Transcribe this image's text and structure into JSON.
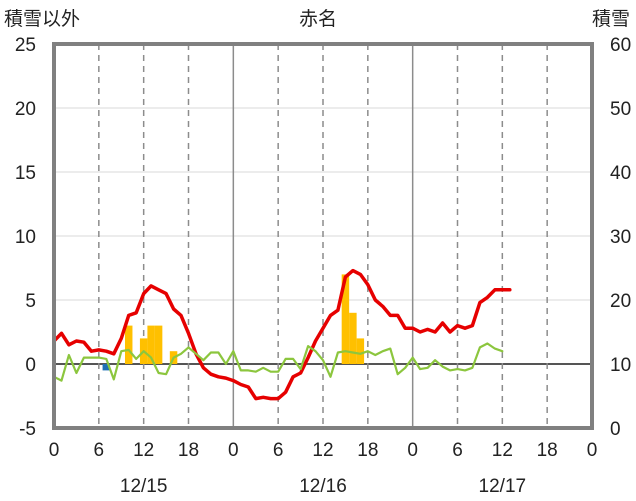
{
  "header": {
    "left_label": "積雪以外",
    "center_label": "赤名",
    "right_label": "積雪"
  },
  "colors": {
    "temperature": "#e60000",
    "wind": "#8cc63e",
    "precipitation": "#ffc000",
    "snow_depth": "#7030a0",
    "sunshine": "#1f6fb5",
    "frame": "#808080",
    "zero_line": "#555555"
  },
  "chart_data": {
    "type": "line",
    "x": [
      0,
      1,
      2,
      3,
      4,
      5,
      6,
      7,
      8,
      9,
      10,
      11,
      12,
      13,
      14,
      15,
      16,
      17,
      18,
      19,
      20,
      21,
      22,
      23,
      24,
      25,
      26,
      27,
      28,
      29,
      30,
      31,
      32,
      33,
      34,
      35,
      36,
      37,
      38,
      39,
      40,
      41,
      42,
      43,
      44,
      45,
      46,
      47,
      48,
      49,
      50,
      51,
      52,
      53,
      54,
      55,
      56,
      57,
      58,
      59,
      60,
      61,
      62,
      63,
      64,
      65,
      66,
      67,
      68,
      69,
      70,
      71
    ],
    "xlim": [
      0,
      72
    ],
    "x_ticks": [
      0,
      6,
      12,
      18,
      24,
      30,
      36,
      42,
      48,
      54,
      60,
      66,
      72
    ],
    "x_tick_labels": [
      "0",
      "6",
      "12",
      "18",
      "0",
      "6",
      "12",
      "18",
      "0",
      "6",
      "12",
      "18",
      "0"
    ],
    "date_labels": [
      {
        "text": "12/15",
        "at": 12
      },
      {
        "text": "12/16",
        "at": 36
      },
      {
        "text": "12/17",
        "at": 60
      }
    ],
    "ylim_left": [
      -5,
      25
    ],
    "y_ticks_left": [
      -5,
      0,
      5,
      10,
      15,
      20,
      25
    ],
    "ylim_right": [
      0,
      60
    ],
    "y_ticks_right": [
      0,
      10,
      20,
      30,
      40,
      50,
      60
    ],
    "grid": true,
    "series": [
      {
        "key": "temperature",
        "style": "line",
        "values": [
          1.8,
          2.4,
          1.5,
          1.8,
          1.7,
          1.0,
          1.1,
          1.0,
          0.8,
          2.0,
          3.8,
          4.0,
          5.5,
          6.1,
          5.8,
          5.5,
          4.3,
          3.8,
          2.4,
          0.8,
          -0.3,
          -0.8,
          -1.0,
          -1.1,
          -1.3,
          -1.6,
          -1.8,
          -2.7,
          -2.6,
          -2.7,
          -2.7,
          -2.2,
          -1.0,
          -0.7,
          0.5,
          1.8,
          2.8,
          3.8,
          4.2,
          6.8,
          7.3,
          7.0,
          6.2,
          5.0,
          4.5,
          3.8,
          3.8,
          2.8,
          2.8,
          2.5,
          2.7,
          2.5,
          3.2,
          2.5,
          3.0,
          2.8,
          3.0,
          4.8,
          5.2,
          5.8,
          5.8,
          5.8,
          null,
          null,
          null,
          null,
          null,
          null,
          null,
          null,
          null,
          null
        ]
      },
      {
        "key": "wind",
        "style": "line",
        "values": [
          -1.0,
          -1.3,
          0.7,
          -0.7,
          0.5,
          0.5,
          0.5,
          0.4,
          -1.2,
          1.0,
          1.1,
          0.4,
          1.0,
          0.5,
          -0.7,
          -0.8,
          0.5,
          0.8,
          1.3,
          0.8,
          0.3,
          0.9,
          0.9,
          0.0,
          1.0,
          -0.5,
          -0.5,
          -0.6,
          -0.3,
          -0.6,
          -0.6,
          0.4,
          0.4,
          -0.4,
          1.4,
          1.0,
          0.3,
          -1.0,
          0.9,
          1.0,
          0.9,
          0.8,
          1.0,
          0.7,
          1.0,
          1.2,
          -0.8,
          -0.3,
          0.5,
          -0.4,
          -0.3,
          0.3,
          -0.2,
          -0.5,
          -0.4,
          -0.5,
          -0.3,
          1.3,
          1.6,
          1.2,
          1.0,
          null,
          null,
          null,
          null,
          null,
          null,
          null,
          null,
          null,
          null,
          null
        ]
      },
      {
        "key": "precipitation",
        "style": "bar",
        "values": [
          0,
          0,
          0,
          0,
          0,
          0,
          0,
          0,
          0,
          0,
          3.0,
          0,
          2.0,
          3.0,
          3.0,
          0,
          1.0,
          0,
          0,
          0,
          0,
          0,
          0,
          0,
          0,
          0,
          0,
          0,
          0,
          0,
          0,
          0,
          0,
          0,
          0,
          0,
          0,
          0,
          0,
          7.0,
          4.0,
          2.0,
          0,
          0,
          0,
          0,
          0,
          0,
          0,
          0,
          0,
          0,
          0,
          0,
          0,
          0,
          0,
          0,
          0,
          0,
          0,
          0,
          null,
          null,
          null,
          null,
          null,
          null,
          null,
          null,
          null,
          null
        ]
      },
      {
        "key": "sunshine",
        "style": "bar",
        "values": [
          0,
          0,
          0,
          0,
          0,
          0,
          0,
          -0.5,
          0,
          0,
          0,
          0,
          0,
          0,
          0,
          0,
          0,
          0,
          0,
          0,
          0,
          0,
          0,
          0,
          0,
          0,
          0,
          0,
          0,
          0,
          0,
          0,
          0,
          0,
          0,
          0,
          0,
          0,
          0,
          0,
          0,
          0,
          0,
          0,
          0,
          0,
          0,
          0,
          0,
          0,
          0,
          0,
          0,
          0,
          0,
          0,
          0,
          0,
          0,
          0,
          0,
          0,
          null,
          null,
          null,
          null,
          null,
          null,
          null,
          null,
          null,
          null
        ]
      },
      {
        "key": "snow_depth",
        "style": "line",
        "axis": "right",
        "values": [
          0,
          0,
          0,
          0,
          0,
          0,
          0,
          0,
          0,
          0,
          0,
          0,
          0,
          0,
          0,
          0,
          0,
          0,
          0,
          0,
          0,
          0,
          0,
          0,
          0,
          0,
          0,
          0,
          0,
          0,
          0,
          0,
          0,
          0,
          0,
          0,
          0,
          0,
          0,
          0,
          0,
          0,
          0,
          0,
          0,
          0,
          0,
          0,
          0,
          0,
          0,
          0,
          0,
          0,
          0,
          0,
          0,
          0,
          0,
          0,
          0,
          0,
          null,
          null,
          null,
          null,
          null,
          null,
          null,
          null,
          null,
          null
        ]
      }
    ]
  }
}
